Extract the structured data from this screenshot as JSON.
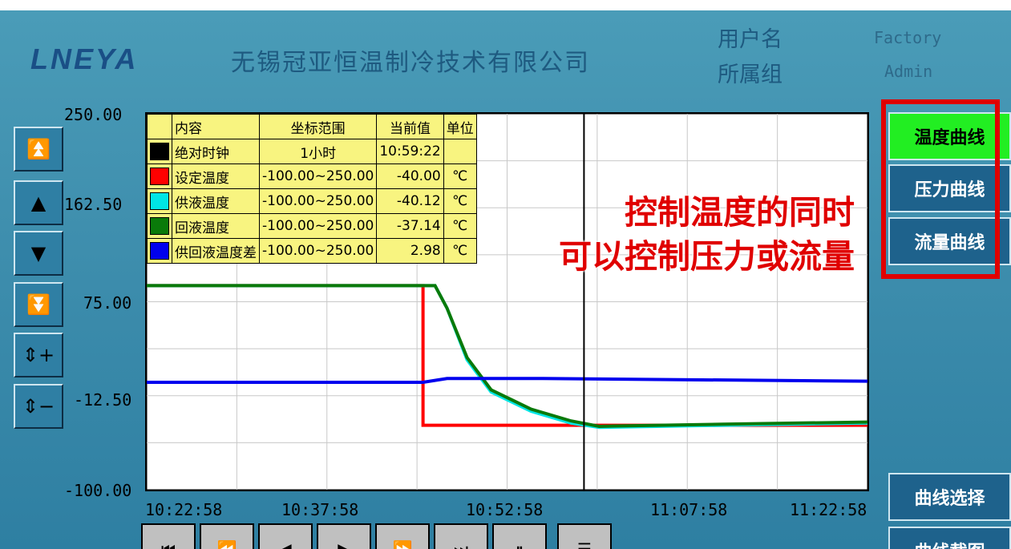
{
  "header": {
    "logo": "LNEYA",
    "company": "无锡冠亚恒温制冷技术有限公司",
    "user_label": "用户名",
    "user_value": "Factory",
    "group_label": "所属组",
    "group_value": "Admin"
  },
  "side_buttons": [
    {
      "icon": "double-up-arrow",
      "glyph": "⏫"
    },
    {
      "icon": "up-arrow",
      "glyph": "▲"
    },
    {
      "icon": "down-arrow",
      "glyph": "▼"
    },
    {
      "icon": "double-down-arrow",
      "glyph": "⏬"
    },
    {
      "icon": "zoom-in",
      "glyph": "⇕+"
    },
    {
      "icon": "zoom-out",
      "glyph": "⇕−"
    }
  ],
  "legend": {
    "headers": [
      "内容",
      "坐标范围",
      "当前值",
      "单位"
    ],
    "rows": [
      {
        "name": "绝对时钟",
        "range": "1小时",
        "value": "10:59:22",
        "unit": "",
        "color": "#000000"
      },
      {
        "name": "设定温度",
        "range": "-100.00~250.00",
        "value": "-40.00",
        "unit": "℃",
        "color": "#ff0000"
      },
      {
        "name": "供液温度",
        "range": "-100.00~250.00",
        "value": "-40.12",
        "unit": "℃",
        "color": "#00e5e5"
      },
      {
        "name": "回液温度",
        "range": "-100.00~250.00",
        "value": "-37.14",
        "unit": "℃",
        "color": "#0a7a0a"
      },
      {
        "name": "供回液温度差",
        "range": "-100.00~250.00",
        "value": "2.98",
        "unit": "℃",
        "color": "#0000ee"
      }
    ]
  },
  "annotation": {
    "line1": "控制温度的同时",
    "line2": "可以控制压力或流量"
  },
  "right_buttons": {
    "temp": "温度曲线",
    "pressure": "压力曲线",
    "flow": "流量曲线",
    "select": "曲线选择",
    "screenshot": "曲线截图"
  },
  "accent_active": "#22ee22",
  "chart_data": {
    "type": "line",
    "ylim": [
      -100,
      250
    ],
    "yticks": [
      "250.00",
      "162.50",
      "75.00",
      "-12.50",
      "-100.00"
    ],
    "xlim": [
      "10:22:58",
      "11:22:58"
    ],
    "xticks": [
      "10:22:58",
      "10:37:58",
      "10:52:58",
      "11:07:58",
      "11:22:58"
    ],
    "cursor": "10:59:22",
    "grid": true,
    "series": [
      {
        "name": "设定温度",
        "color": "#ff0000",
        "points": [
          [
            "10:22:58",
            90
          ],
          [
            "10:45:58",
            90
          ],
          [
            "10:45:58",
            -40
          ],
          [
            "11:22:58",
            -40
          ]
        ]
      },
      {
        "name": "供液温度",
        "color": "#00e5e5",
        "points": [
          [
            "10:22:58",
            90
          ],
          [
            "10:46:58",
            90
          ],
          [
            "10:47:58",
            69
          ],
          [
            "10:49:38",
            21
          ],
          [
            "10:51:38",
            -9
          ],
          [
            "10:54:58",
            -27
          ],
          [
            "10:58:18",
            -38
          ],
          [
            "11:00:38",
            -42
          ],
          [
            "11:10:58",
            -40
          ],
          [
            "11:22:58",
            -38
          ]
        ]
      },
      {
        "name": "回液温度",
        "color": "#0a7a0a",
        "points": [
          [
            "10:22:58",
            90
          ],
          [
            "10:46:58",
            90
          ],
          [
            "10:47:58",
            69
          ],
          [
            "10:49:38",
            23
          ],
          [
            "10:51:38",
            -7
          ],
          [
            "10:54:58",
            -25
          ],
          [
            "10:58:18",
            -36
          ],
          [
            "11:00:38",
            -41
          ],
          [
            "11:10:58",
            -39
          ],
          [
            "11:22:58",
            -37
          ]
        ]
      },
      {
        "name": "供回液温度差",
        "color": "#0000ee",
        "points": [
          [
            "10:22:58",
            0
          ],
          [
            "10:45:58",
            0
          ],
          [
            "10:47:58",
            3.5
          ],
          [
            "10:55:58",
            3.5
          ],
          [
            "11:22:58",
            1
          ]
        ]
      }
    ]
  }
}
